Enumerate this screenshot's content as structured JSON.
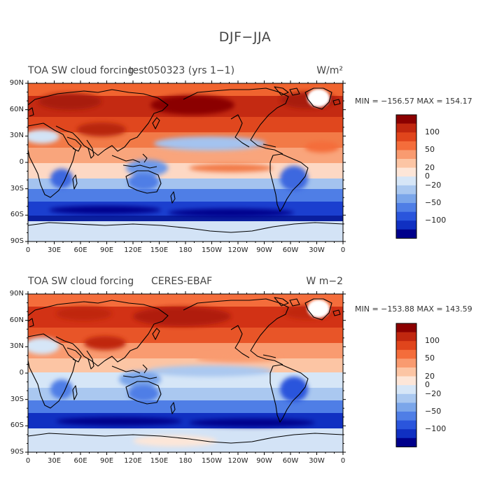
{
  "figure": {
    "title": "DJF−JJA"
  },
  "panels": [
    {
      "left_title": "TOA SW cloud forcing",
      "center_title": "test050323 (yrs 1−1)",
      "units": "W/m²",
      "stats": "MIN = −156.57 MAX = 154.17"
    },
    {
      "left_title": "TOA SW cloud forcing",
      "center_title": "CERES-EBAF",
      "units": "W m−2",
      "stats": "MIN = −153.88 MAX = 143.59"
    }
  ],
  "axes": {
    "lat_labels": [
      "90N",
      "60N",
      "30N",
      "0",
      "30S",
      "60S",
      "90S"
    ],
    "lon_labels": [
      "0",
      "30E",
      "60E",
      "90E",
      "120E",
      "150E",
      "180",
      "150W",
      "120W",
      "90W",
      "60W",
      "30W",
      "0"
    ]
  },
  "colorbar": {
    "colors": [
      "#8b0000",
      "#c0270f",
      "#e0451c",
      "#f46d3b",
      "#f99b70",
      "#fcc5a4",
      "#fde6d8",
      "#d6e6f7",
      "#aac8f0",
      "#7ba6ea",
      "#4f7ee6",
      "#2a55dc",
      "#1030c2",
      "#00008b"
    ],
    "labels": [
      "100",
      "50",
      "20",
      "0",
      "−20",
      "−50",
      "−100"
    ]
  },
  "map_palette": {
    "deep_red": "#b01b0a",
    "red": "#d8391a",
    "orange": "#f0642f",
    "light_orange": "#f99566",
    "peach": "#fcc6a6",
    "cream": "#fde7da",
    "pale_blue": "#d3e3f6",
    "light_blue": "#a4c3ef",
    "mid_blue": "#6e99e8",
    "blue": "#3c68df",
    "deep_blue": "#1b3fcf",
    "navy": "#0a1f9e",
    "coast": "#000000"
  }
}
